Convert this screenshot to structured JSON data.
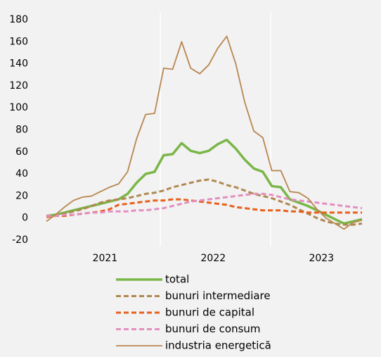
{
  "chart_data": {
    "type": "line",
    "categories": [
      null,
      null,
      null,
      null,
      null,
      null,
      "2021",
      null,
      null,
      null,
      null,
      null,
      null,
      null,
      null,
      null,
      null,
      null,
      "2022",
      null,
      null,
      null,
      null,
      null,
      null,
      null,
      null,
      null,
      null,
      null,
      "2023",
      null,
      null,
      null,
      null,
      null
    ],
    "series": [
      {
        "name": "total",
        "color": "#7ab648",
        "style": "solid",
        "width": 3.5,
        "values": [
          2,
          3,
          5,
          7,
          9,
          11,
          13,
          15,
          17,
          22,
          32,
          40,
          42,
          57,
          58,
          68,
          61,
          59,
          61,
          67,
          71,
          63,
          53,
          45,
          42,
          29,
          28,
          17,
          14,
          11,
          7,
          3,
          -1,
          -5,
          -3,
          -1
        ]
      },
      {
        "name": "bunuri intermediare",
        "color": "#b08850",
        "style": "dashed",
        "width": 3,
        "values": [
          1,
          2,
          4,
          6,
          8,
          11,
          14,
          16,
          17,
          18,
          20,
          22,
          23,
          25,
          28,
          30,
          32,
          34,
          35,
          33,
          30,
          28,
          25,
          22,
          20,
          18,
          15,
          12,
          8,
          4,
          0,
          -3,
          -5,
          -6,
          -6,
          -5
        ]
      },
      {
        "name": "bunuri de capital",
        "color": "#e8601c",
        "style": "dashed",
        "width": 3,
        "values": [
          1,
          2,
          2,
          3,
          4,
          5,
          6,
          8,
          12,
          13,
          14,
          15,
          16,
          16,
          17,
          17,
          16,
          15,
          14,
          13,
          12,
          10,
          9,
          8,
          7,
          7,
          7,
          6,
          6,
          5,
          5,
          5,
          5,
          5,
          5,
          5
        ]
      },
      {
        "name": "bunuri de consum",
        "color": "#e38fc0",
        "style": "dashed",
        "width": 3,
        "values": [
          2,
          2,
          3,
          3,
          4,
          5,
          5,
          6,
          6,
          6,
          7,
          7,
          8,
          9,
          11,
          13,
          15,
          16,
          17,
          18,
          19,
          20,
          21,
          22,
          22,
          21,
          19,
          17,
          16,
          15,
          14,
          13,
          12,
          11,
          10,
          9
        ]
      },
      {
        "name": "industria energetică",
        "color": "#b8864f",
        "style": "solid",
        "width": 1.8,
        "values": [
          -3,
          3,
          10,
          16,
          19,
          20,
          24,
          28,
          31,
          42,
          72,
          94,
          95,
          136,
          135,
          160,
          136,
          131,
          139,
          154,
          165,
          140,
          105,
          79,
          73,
          43,
          43,
          24,
          23,
          18,
          8,
          0,
          -5,
          -10,
          -4,
          -2
        ]
      }
    ],
    "ylim": [
      -20,
      180
    ],
    "yticks": [
      -20,
      0,
      20,
      40,
      60,
      80,
      100,
      120,
      140,
      160,
      180
    ]
  }
}
